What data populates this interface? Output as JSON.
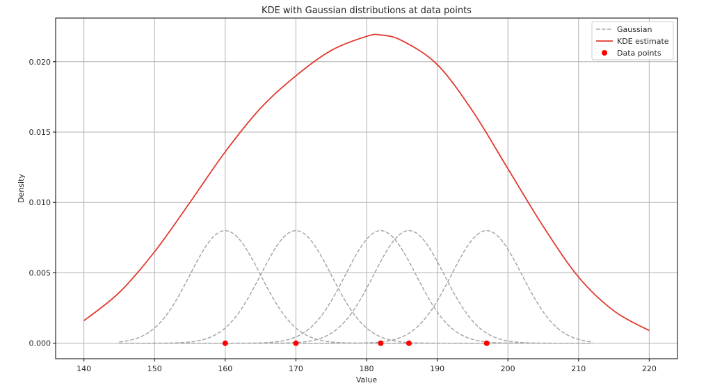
{
  "chart_data": {
    "type": "line",
    "title": "KDE with Gaussian distributions at data points",
    "xlabel": "Value",
    "ylabel": "Density",
    "xlim": [
      136,
      224
    ],
    "ylim": [
      -0.0011,
      0.0231
    ],
    "xticks": [
      140,
      150,
      160,
      170,
      180,
      190,
      200,
      210,
      220
    ],
    "yticks": [
      0.0,
      0.005,
      0.01,
      0.015,
      0.02
    ],
    "ytick_labels": [
      "0.000",
      "0.005",
      "0.010",
      "0.015",
      "0.020"
    ],
    "grid": true,
    "legend_position": "top-right",
    "data_points": [
      160,
      170,
      182,
      186,
      197
    ],
    "gaussian": {
      "name": "Gaussian",
      "peak": 0.008,
      "sigma": 5,
      "x_range": [
        145,
        212
      ],
      "color": "#a6a6a6",
      "style": "dashed"
    },
    "kde": {
      "name": "KDE estimate",
      "x": [
        140,
        145,
        150,
        155,
        160,
        165,
        170,
        175,
        180,
        182,
        185,
        190,
        195,
        200,
        205,
        210,
        215,
        220
      ],
      "y": [
        0.0016,
        0.0036,
        0.0065,
        0.01,
        0.0136,
        0.0167,
        0.019,
        0.0208,
        0.0218,
        0.0219,
        0.0215,
        0.0198,
        0.0165,
        0.0124,
        0.0083,
        0.0047,
        0.0023,
        0.0009
      ],
      "color": "#e03a2e"
    },
    "points": {
      "name": "Data points",
      "color": "#ff0000"
    }
  }
}
